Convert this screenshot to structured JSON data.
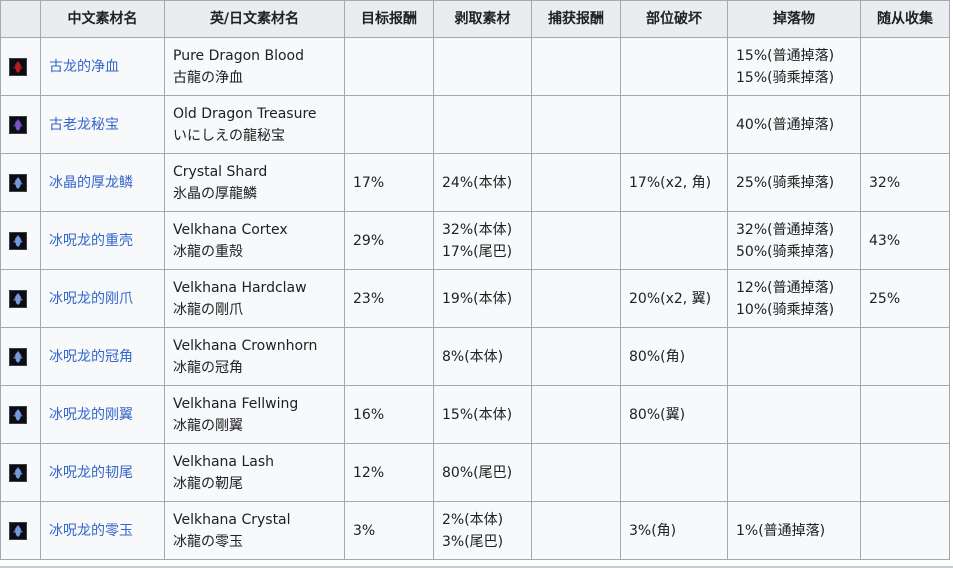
{
  "table": {
    "headers": {
      "icon": "",
      "zh_name": "中文素材名",
      "en_jp_name": "英/日文素材名",
      "target_reward": "目标报酬",
      "carve": "剥取素材",
      "capture_reward": "捕获报酬",
      "part_break": "部位破坏",
      "drop": "掉落物",
      "palico_gather": "随从收集"
    },
    "rows": [
      {
        "icon": "pure-dragon-blood-icon",
        "icon_color": "#c8201e",
        "zh": "古龙的净血",
        "en": "Pure Dragon Blood",
        "jp": "古龍の浄血",
        "target": "",
        "carve": [
          "",
          ""
        ],
        "capture": "",
        "break": "",
        "drop": [
          "15%(普通掉落)",
          "15%(骑乘掉落)"
        ],
        "gather": ""
      },
      {
        "icon": "old-dragon-treasure-icon",
        "icon_color": "#8a56d8",
        "zh": "古老龙秘宝",
        "en": "Old Dragon Treasure",
        "jp": "いにしえの龍秘宝",
        "target": "",
        "carve": [
          "",
          ""
        ],
        "capture": "",
        "break": "",
        "drop": [
          "40%(普通掉落)",
          ""
        ],
        "gather": ""
      },
      {
        "icon": "crystal-shard-icon",
        "icon_color": "#7fa7f0",
        "zh": "冰晶的厚龙鳞",
        "en": "Crystal Shard",
        "jp": "氷晶の厚龍鱗",
        "target": "17%",
        "carve": [
          "24%(本体)",
          ""
        ],
        "capture": "",
        "break": "17%(x2, 角)",
        "drop": [
          "25%(骑乘掉落)",
          ""
        ],
        "gather": "32%"
      },
      {
        "icon": "velkhana-cortex-icon",
        "icon_color": "#7fa7f0",
        "zh": "冰呪龙的重壳",
        "en": "Velkhana Cortex",
        "jp": "冰龍の重殻",
        "target": "29%",
        "carve": [
          "32%(本体)",
          "17%(尾巴)"
        ],
        "capture": "",
        "break": "",
        "drop": [
          "32%(普通掉落)",
          "50%(骑乘掉落)"
        ],
        "gather": "43%"
      },
      {
        "icon": "velkhana-hardclaw-icon",
        "icon_color": "#7fa7f0",
        "zh": "冰呪龙的刚爪",
        "en": "Velkhana Hardclaw",
        "jp": "冰龍の剛爪",
        "target": "23%",
        "carve": [
          "19%(本体)",
          ""
        ],
        "capture": "",
        "break": "20%(x2, 翼)",
        "drop": [
          "12%(普通掉落)",
          "10%(骑乘掉落)"
        ],
        "gather": "25%"
      },
      {
        "icon": "velkhana-crownhorn-icon",
        "icon_color": "#7fa7f0",
        "zh": "冰呪龙的冠角",
        "en": "Velkhana Crownhorn",
        "jp": "冰龍の冠角",
        "target": "",
        "carve": [
          "8%(本体)",
          ""
        ],
        "capture": "",
        "break": "80%(角)",
        "drop": [
          "",
          ""
        ],
        "gather": ""
      },
      {
        "icon": "velkhana-fellwing-icon",
        "icon_color": "#7fa7f0",
        "zh": "冰呪龙的刚翼",
        "en": "Velkhana Fellwing",
        "jp": "冰龍の剛翼",
        "target": "16%",
        "carve": [
          "15%(本体)",
          ""
        ],
        "capture": "",
        "break": "80%(翼)",
        "drop": [
          "",
          ""
        ],
        "gather": ""
      },
      {
        "icon": "velkhana-lash-icon",
        "icon_color": "#7fa7f0",
        "zh": "冰呪龙的韧尾",
        "en": "Velkhana Lash",
        "jp": "冰龍の靭尾",
        "target": "12%",
        "carve": [
          "80%(尾巴)",
          ""
        ],
        "capture": "",
        "break": "",
        "drop": [
          "",
          ""
        ],
        "gather": ""
      },
      {
        "icon": "velkhana-crystal-icon",
        "icon_color": "#7fa7f0",
        "zh": "冰呪龙的零玉",
        "en": "Velkhana Crystal",
        "jp": "冰龍の零玉",
        "target": "3%",
        "carve": [
          "2%(本体)",
          "3%(尾巴)"
        ],
        "capture": "",
        "break": "3%(角)",
        "drop": [
          "1%(普通掉落)",
          ""
        ],
        "gather": ""
      }
    ]
  },
  "colors": {
    "link": "#3366cc",
    "header_bg": "#eaecf0",
    "cell_bg": "#f8f9fa",
    "border": "#a2a9b1"
  }
}
